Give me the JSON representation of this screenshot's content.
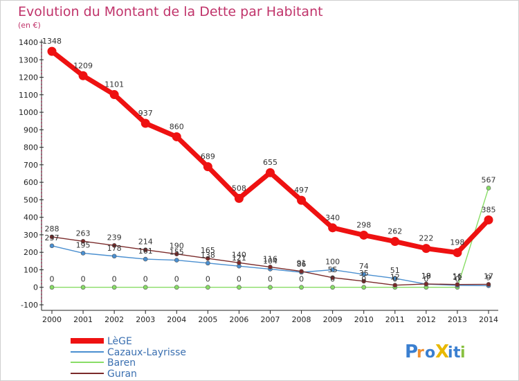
{
  "chart_data": {
    "type": "line",
    "title": "Evolution du Montant de la Dette par Habitant",
    "subtitle": "(en €)",
    "x": [
      "2000",
      "2001",
      "2002",
      "2003",
      "2004",
      "2005",
      "2006",
      "2007",
      "2008",
      "2009",
      "2010",
      "2011",
      "2012",
      "2013",
      "2014"
    ],
    "ylim": [
      -100,
      1400
    ],
    "yticks": [
      -100,
      0,
      100,
      200,
      300,
      400,
      500,
      600,
      700,
      800,
      900,
      1000,
      1100,
      1200,
      1300,
      1400
    ],
    "grid": false,
    "legend_position": "bottom-left",
    "series": [
      {
        "name": "LèGE",
        "color": "#ee1111",
        "values": [
          1348,
          1209,
          1101,
          937,
          860,
          689,
          508,
          655,
          497,
          340,
          298,
          262,
          222,
          198,
          385
        ]
      },
      {
        "name": "Cazaux-Layrisse",
        "color": "#4a8fd0",
        "values": [
          237,
          195,
          178,
          161,
          155,
          138,
          121,
          104,
          86,
          100,
          74,
          51,
          18,
          11,
          9
        ]
      },
      {
        "name": "Baren",
        "color": "#88dd66",
        "values": [
          0,
          0,
          0,
          0,
          0,
          0,
          0,
          0,
          0,
          0,
          0,
          0,
          0,
          0,
          567
        ]
      },
      {
        "name": "Guran",
        "color": "#7a2a2a",
        "values": [
          288,
          263,
          239,
          214,
          190,
          165,
          140,
          116,
          91,
          55,
          35,
          12,
          19,
          16,
          17
        ]
      }
    ]
  },
  "logo": {
    "text": "ProXiti",
    "letters": [
      "P",
      "r",
      "o",
      "X",
      "i",
      "t",
      "i"
    ],
    "colors": [
      "#3a7fd0",
      "#f09030",
      "#3a7fd0",
      "#e8b800",
      "#3a7fd0",
      "#3a7fd0",
      "#88c040"
    ]
  }
}
